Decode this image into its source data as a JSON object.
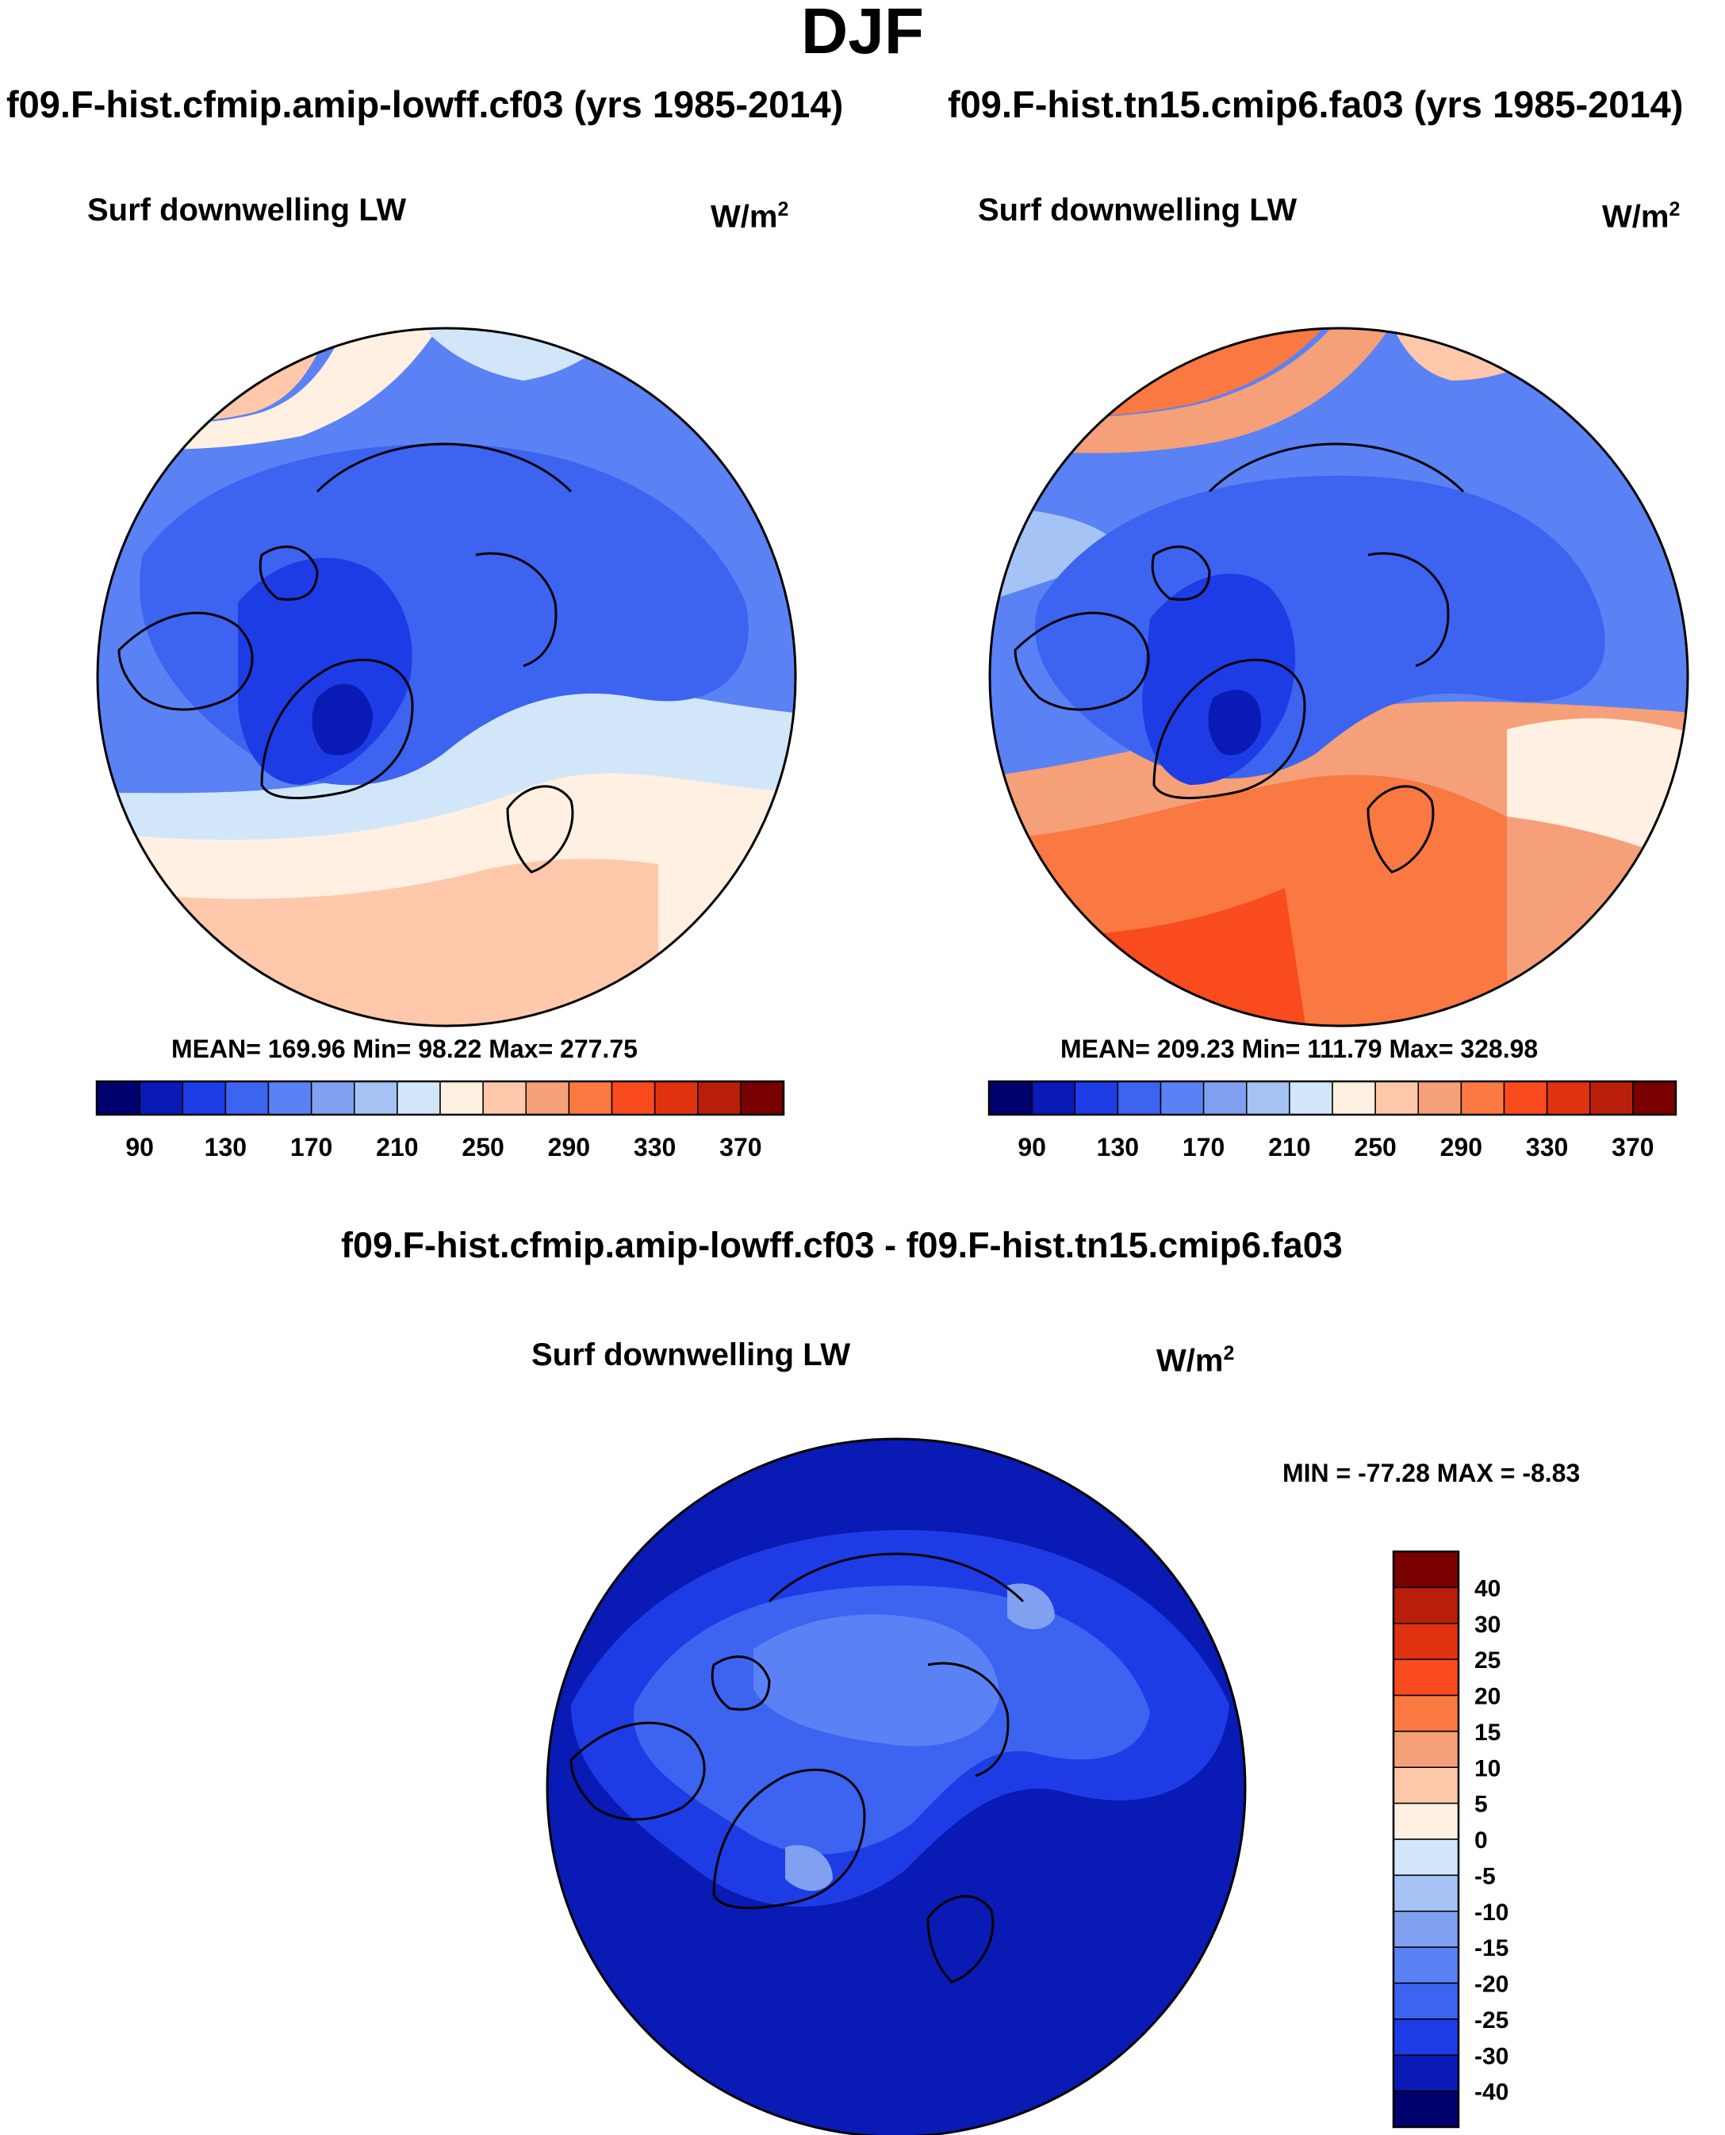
{
  "title": "DJF",
  "colors": {
    "abs_scale": [
      "#00006e",
      "#0a1ab4",
      "#1e3ce6",
      "#3c64f0",
      "#5a82f5",
      "#82a0f0",
      "#a5c3f5",
      "#d2e6fa",
      "#fff0e1",
      "#ffc8aa",
      "#f5a078",
      "#fa7841",
      "#fa4b1e",
      "#e1320f",
      "#b91e0a",
      "#780000"
    ],
    "diff_scale": [
      "#00006e",
      "#0a1ab4",
      "#1e3ce6",
      "#3c64f0",
      "#5a82f5",
      "#82a0f0",
      "#a5c3f5",
      "#d2e6fa",
      "#fff0e1",
      "#ffc8aa",
      "#f5a078",
      "#fa7841",
      "#fa4b1e",
      "#e1320f",
      "#b91e0a",
      "#780000"
    ]
  },
  "panels": {
    "left": {
      "case": "f09.F-hist.cfmip.amip-lowff.cf03 (yrs 1985-2014)",
      "variable": "Surf downwelling LW",
      "units_base": "W/m",
      "units_exp": "2",
      "stats": "MEAN= 169.96  Min=  98.22  Max= 277.75"
    },
    "right": {
      "case": "f09.F-hist.tn15.cmip6.fa03 (yrs 1985-2014)",
      "variable": "Surf downwelling LW",
      "units_base": "W/m",
      "units_exp": "2",
      "stats": "MEAN= 209.23  Min= 111.79  Max= 328.98"
    },
    "diff": {
      "case": "f09.F-hist.cfmip.amip-lowff.cf03 - f09.F-hist.tn15.cmip6.fa03",
      "variable": "Surf downwelling LW",
      "units_base": "W/m",
      "units_exp": "2",
      "stats": "MIN = -77.28 MAX =  -8.83"
    }
  },
  "chart_data": [
    {
      "type": "heatmap",
      "projection": "north polar stereographic",
      "title": "Surf downwelling LW",
      "subtitle": "f09.F-hist.cfmip.amip-lowff.cf03 (yrs 1985-2014)",
      "units": "W/m2",
      "mean": 169.96,
      "min": 98.22,
      "max": 277.75,
      "colorbar_ticks": [
        90,
        130,
        170,
        210,
        250,
        290,
        330,
        370
      ],
      "colorbar_levels": 16,
      "colorbar_orientation": "horizontal"
    },
    {
      "type": "heatmap",
      "projection": "north polar stereographic",
      "title": "Surf downwelling LW",
      "subtitle": "f09.F-hist.tn15.cmip6.fa03 (yrs 1985-2014)",
      "units": "W/m2",
      "mean": 209.23,
      "min": 111.79,
      "max": 328.98,
      "colorbar_ticks": [
        90,
        130,
        170,
        210,
        250,
        290,
        330,
        370
      ],
      "colorbar_levels": 16,
      "colorbar_orientation": "horizontal"
    },
    {
      "type": "heatmap",
      "projection": "north polar stereographic",
      "title": "Surf downwelling LW",
      "subtitle": "f09.F-hist.cfmip.amip-lowff.cf03 - f09.F-hist.tn15.cmip6.fa03",
      "units": "W/m2",
      "min": -77.28,
      "max": -8.83,
      "colorbar_ticks": [
        "40",
        "30",
        "25",
        "20",
        "15",
        "10",
        "5",
        "0",
        "-5",
        "-10",
        "-15",
        "-20",
        "-25",
        "-30",
        "-40"
      ],
      "colorbar_levels": 16,
      "colorbar_orientation": "vertical"
    }
  ]
}
